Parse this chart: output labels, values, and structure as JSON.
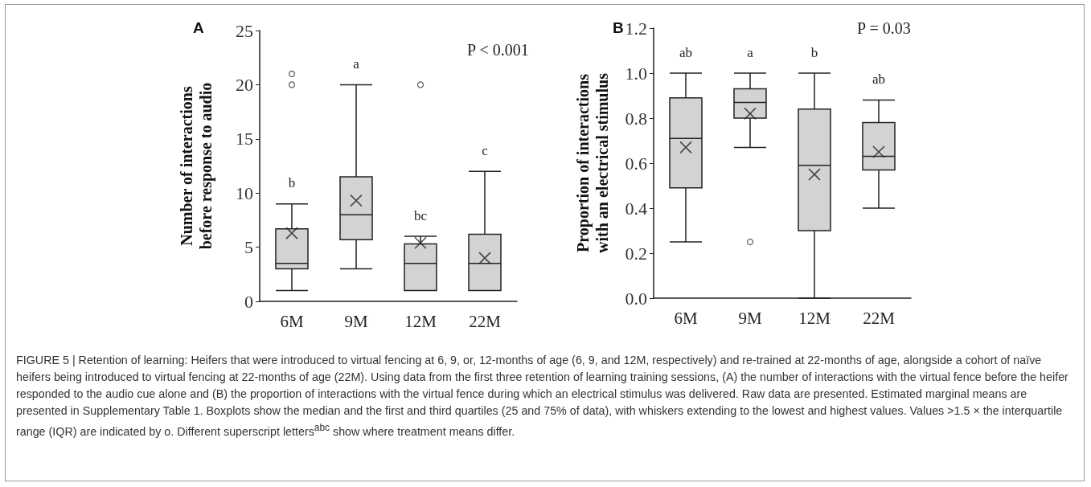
{
  "chart_data": [
    {
      "type": "box",
      "title": "A",
      "ylabel": "Number of interactions\nbefore response to audio",
      "categories": [
        "6M",
        "9M",
        "12M",
        "22M"
      ],
      "ylim": [
        0,
        25
      ],
      "yticks": [
        0,
        5,
        10,
        15,
        20,
        25
      ],
      "series": [
        {
          "color": "#d3d3d3",
          "boxes": [
            {
              "low": 1,
              "q1": 3,
              "median": 3.5,
              "q3": 6.7,
              "high": 9,
              "mean": 6.3,
              "outliers": [
                20,
                21
              ]
            },
            {
              "low": 3,
              "q1": 5.7,
              "median": 8,
              "q3": 11.5,
              "high": 20,
              "mean": 9.3
            },
            {
              "low": 1,
              "q1": 1,
              "median": 3.5,
              "q3": 5.3,
              "high": 6,
              "mean": 5.4,
              "outliers": [
                20
              ]
            },
            {
              "low": 1,
              "q1": 1,
              "median": 3.5,
              "q3": 6.2,
              "high": 12,
              "mean": 4
            }
          ]
        }
      ],
      "annotations": [
        "P < 0.001",
        "b",
        "a",
        "bc",
        "c"
      ]
    },
    {
      "type": "box",
      "title": "B",
      "ylabel": "Proportion of interactions\nwith an electrical stimulus",
      "categories": [
        "6M",
        "9M",
        "12M",
        "22M"
      ],
      "ylim": [
        0,
        1.2
      ],
      "yticks": [
        {
          "value": 0,
          "label": "0.0"
        },
        0.2,
        0.4,
        0.6,
        0.8,
        {
          "value": 1,
          "label": "1.0"
        },
        1.2
      ],
      "series": [
        {
          "color": "#d3d3d3",
          "boxes": [
            {
              "low": 0.25,
              "q1": 0.49,
              "median": 0.71,
              "q3": 0.89,
              "high": 1,
              "mean": 0.67
            },
            {
              "low": 0.67,
              "q1": 0.8,
              "median": 0.87,
              "q3": 0.93,
              "high": 1,
              "mean": 0.82,
              "outliers": [
                0.25
              ]
            },
            {
              "low": 0,
              "q1": 0.3,
              "median": 0.59,
              "q3": 0.84,
              "high": 1,
              "mean": 0.55
            },
            {
              "low": 0.4,
              "q1": 0.57,
              "median": 0.63,
              "q3": 0.78,
              "high": 0.88,
              "mean": 0.65
            }
          ]
        }
      ],
      "annotations": [
        "P = 0.03",
        "ab",
        "a",
        "b",
        "ab",
        "FIGURE 5 | Retention of learning: Heifers that were introduced to virtual fencing at 6, 9, or, 12-months of age (6, 9, and 12M, respectively) and re-trained at 22-months of age, alongside a cohort of naïve heifers being introduced to virtual fencing at 22-months of age (22M). Using data from the first three retention of learning training sessions, (A) the number of interactions with the virtual fence before the heifer responded to the audio cue alone and (B) the proportion of interactions with the virtual fence during which an electrical stimulus was delivered. Raw data are presented. Estimated marginal means are presented in Supplementary Table 1. Boxplots show the median and the first and third quartiles (25 and 75% of data), with whiskers extending to the lowest and highest values. Values >1.5 × the interquartile range (IQR) are indicated by o. Different superscript letters$^{abc}$ show where treatment means differ."
      ]
    }
  ]
}
